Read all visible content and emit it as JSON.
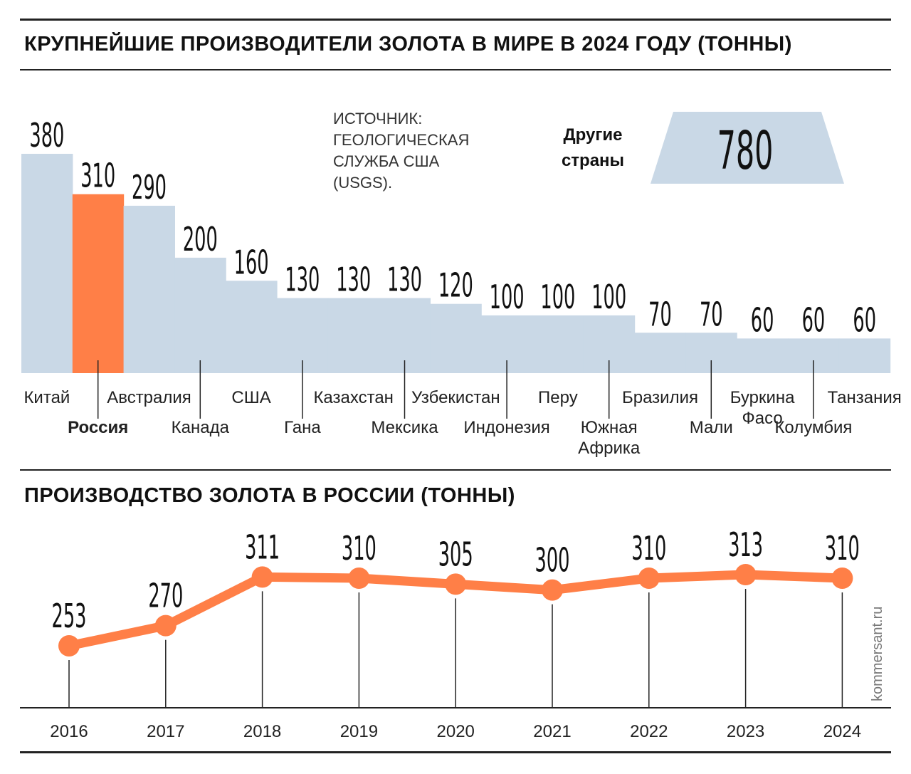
{
  "header": {
    "title": "КРУПНЕЙШИЕ ПРОИЗВОДИТЕЛИ ЗОЛОТА В МИРЕ В 2024 ГОДУ (ТОННЫ)",
    "source": "ИСТОЧНИК:\nГЕОЛОГИЧЕСКАЯ\nСЛУЖБА США\n(USGS).",
    "others_label": "Другие\nстраны",
    "others_value": "780"
  },
  "section2": {
    "title": "ПРОИЗВОДСТВО ЗОЛОТА В РОССИИ (ТОННЫ)"
  },
  "credit": "kommersant.ru",
  "colors": {
    "bar": "#c9d8e6",
    "highlight": "#ff7f47",
    "line": "#ff7f47",
    "rule": "#222222"
  },
  "chart_data": [
    {
      "type": "bar",
      "title": "КРУПНЕЙШИЕ ПРОИЗВОДИТЕЛИ ЗОЛОТА В МИРЕ В 2024 ГОДУ (ТОННЫ)",
      "categories": [
        "Китай",
        "Россия",
        "Австралия",
        "Канада",
        "США",
        "Гана",
        "Казахстан",
        "Мексика",
        "Узбекистан",
        "Индонезия",
        "Перу",
        "Южная Африка",
        "Бразилия",
        "Мали",
        "Буркина Фасо",
        "Колумбия",
        "Танзания"
      ],
      "label_lines": [
        [
          "Китай"
        ],
        [
          "Россия"
        ],
        [
          "Австралия"
        ],
        [
          "Канада"
        ],
        [
          "США"
        ],
        [
          "Гана"
        ],
        [
          "Казахстан"
        ],
        [
          "Мексика"
        ],
        [
          "Узбекистан"
        ],
        [
          "Индонезия"
        ],
        [
          "Перу"
        ],
        [
          "Южная",
          "Африка"
        ],
        [
          "Бразилия"
        ],
        [
          "Мали"
        ],
        [
          "Буркина",
          "Фасо"
        ],
        [
          "Колумбия"
        ],
        [
          "Танзания"
        ]
      ],
      "values": [
        380,
        310,
        290,
        200,
        160,
        130,
        130,
        130,
        120,
        100,
        100,
        100,
        70,
        70,
        60,
        60,
        60
      ],
      "highlight": "Россия",
      "others": 780
    },
    {
      "type": "line",
      "title": "ПРОИЗВОДСТВО ЗОЛОТА В РОССИИ (ТОННЫ)",
      "x": [
        "2016",
        "2017",
        "2018",
        "2019",
        "2020",
        "2021",
        "2022",
        "2023",
        "2024"
      ],
      "values": [
        253,
        270,
        311,
        310,
        305,
        300,
        310,
        313,
        310
      ]
    }
  ]
}
